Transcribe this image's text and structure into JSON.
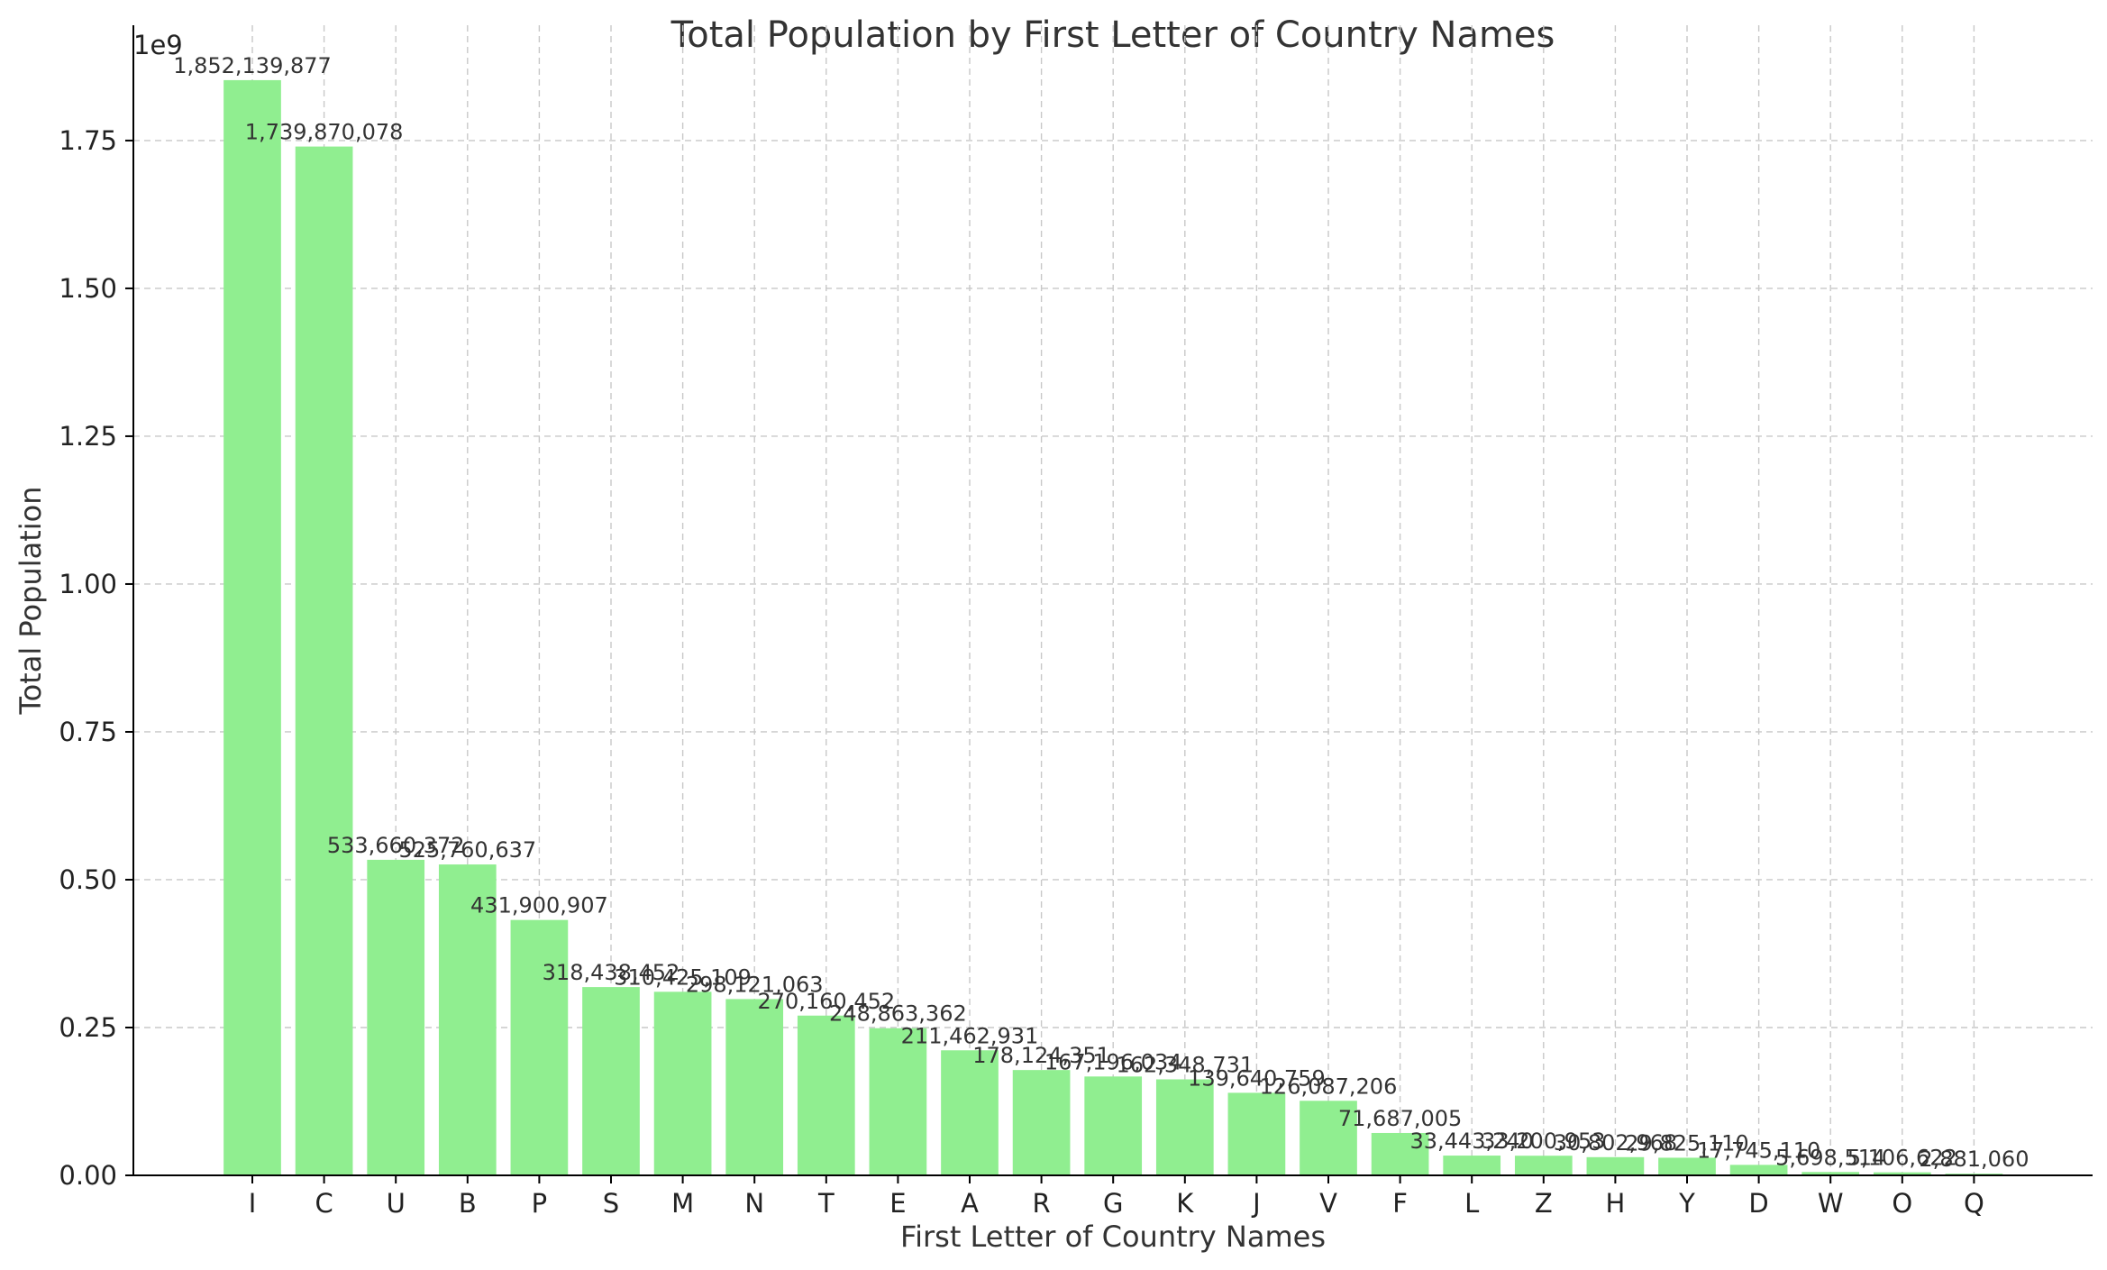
{
  "chart_data": {
    "type": "bar",
    "title": "Total Population by First Letter of Country Names",
    "xlabel": "First Letter of Country Names",
    "ylabel": "Total Population",
    "y_multiplier_label": "1e9",
    "ylim": [
      0,
      1945000000
    ],
    "yticks": [
      0,
      250000000,
      500000000,
      750000000,
      1000000000,
      1250000000,
      1500000000,
      1750000000
    ],
    "ytick_labels": [
      "0.00",
      "0.25",
      "0.50",
      "0.75",
      "1.00",
      "1.25",
      "1.50",
      "1.75"
    ],
    "grid": true,
    "bar_color": "#90ee90",
    "categories": [
      "I",
      "C",
      "U",
      "B",
      "P",
      "S",
      "M",
      "N",
      "T",
      "E",
      "A",
      "R",
      "G",
      "K",
      "J",
      "V",
      "F",
      "L",
      "Z",
      "H",
      "Y",
      "D",
      "W",
      "O",
      "Q"
    ],
    "values": [
      1852139877,
      1739870078,
      533660372,
      525760637,
      431900907,
      318438452,
      310425109,
      298121063,
      270160452,
      248863362,
      211462931,
      178124351,
      167196034,
      162348731,
      139640759,
      126087206,
      71687005,
      33443240,
      33200953,
      30802968,
      29825110,
      17745110,
      5698514,
      5106622,
      2881060
    ],
    "data_labels": [
      "1,852,139,877",
      "1,739,870,078",
      "533,660,372",
      "525,760,637",
      "431,900,907",
      "318,438,452",
      "310,425,109",
      "298,121,063",
      "270,160,452",
      "248,863,362",
      "211,462,931",
      "178,124,351",
      "167,196,034",
      "162,348,731",
      "139,640,759",
      "126,087,206",
      "71,687,005",
      "33,443,240",
      "33,200,953",
      "30,802,968",
      "29,825,110",
      "17,745,110",
      "5,698,514",
      "5,106,622",
      "2,881,060"
    ]
  }
}
